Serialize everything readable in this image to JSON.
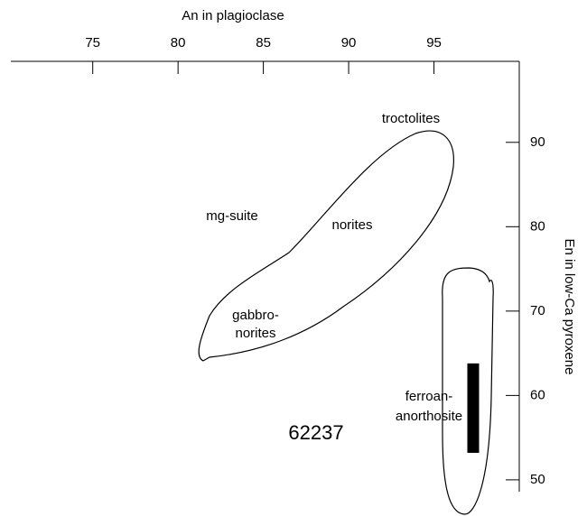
{
  "chart_data": {
    "type": "range-bar",
    "x_label": "An in plagioclase",
    "y_label": "En in low-Ca pyroxene",
    "xlim": [
      70.2,
      100
    ],
    "xticks": [
      75,
      80,
      85,
      90,
      95
    ],
    "ylim": [
      48.6,
      99.6
    ],
    "yticks": [
      50,
      60,
      70,
      80,
      90
    ],
    "sample": {
      "label": "62237",
      "x": 97.3,
      "ymin": 53.2,
      "ymax": 63.8,
      "color": "#000000"
    },
    "annotations": [
      "troctolites",
      "mg-suite",
      "norites",
      "gabbro-",
      "norites",
      "ferroan-",
      "anorthosite"
    ]
  }
}
